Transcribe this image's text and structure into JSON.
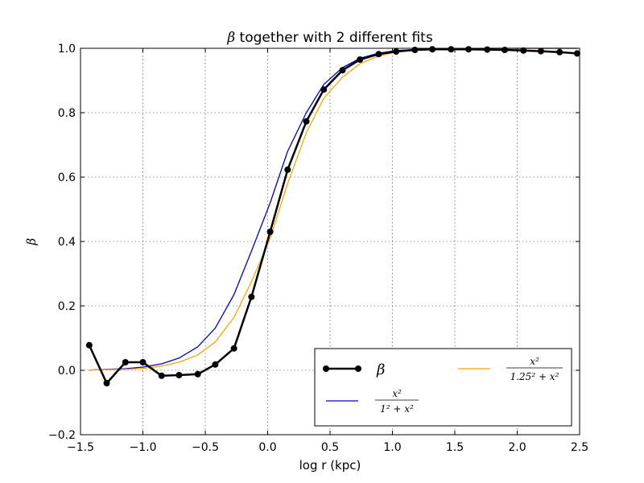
{
  "chart_data": {
    "type": "line",
    "title_symbol": "β",
    "title_rest": " together with 2 different fits",
    "xlabel": "log r (kpc)",
    "ylabel": "β",
    "xlim": [
      -1.5,
      2.5
    ],
    "ylim": [
      -0.2,
      1.0
    ],
    "x_ticks": [
      -1.5,
      -1.0,
      -0.5,
      0.0,
      0.5,
      1.0,
      1.5,
      2.0,
      2.5
    ],
    "x_tick_labels": [
      "−1.5",
      "−1.0",
      "−0.5",
      "0.0",
      "0.5",
      "1.0",
      "1.5",
      "2.0",
      "2.5"
    ],
    "y_ticks": [
      -0.2,
      0.0,
      0.2,
      0.4,
      0.6,
      0.8,
      1.0
    ],
    "y_tick_labels": [
      "−0.2",
      "0.0",
      "0.2",
      "0.4",
      "0.6",
      "0.8",
      "1.0"
    ],
    "grid": true,
    "legend_position": "lower-right",
    "series": [
      {
        "name": "β",
        "legend_label": "β",
        "color": "#000000",
        "marker": "circle",
        "x": [
          -1.43,
          -1.29,
          -1.14,
          -1.0,
          -0.85,
          -0.71,
          -0.56,
          -0.42,
          -0.27,
          -0.13,
          0.02,
          0.16,
          0.31,
          0.45,
          0.6,
          0.74,
          0.89,
          1.03,
          1.18,
          1.32,
          1.47,
          1.61,
          1.76,
          1.9,
          2.05,
          2.19,
          2.34,
          2.48
        ],
        "y": [
          0.078,
          -0.04,
          0.025,
          0.025,
          -0.017,
          -0.015,
          -0.012,
          0.018,
          0.068,
          0.228,
          0.43,
          0.623,
          0.773,
          0.872,
          0.932,
          0.965,
          0.982,
          0.99,
          0.995,
          0.997,
          0.997,
          0.997,
          0.996,
          0.995,
          0.993,
          0.991,
          0.988,
          0.984
        ]
      },
      {
        "name": "fit-1",
        "legend_label": "x²/(1² + x²)",
        "legend_num": "x²",
        "legend_den": "1² + x²",
        "color": "#0000cc",
        "marker": "none",
        "x": [
          -1.43,
          -1.29,
          -1.14,
          -1.0,
          -0.85,
          -0.71,
          -0.56,
          -0.42,
          -0.27,
          -0.13,
          0.02,
          0.16,
          0.31,
          0.45,
          0.6,
          0.74,
          0.89,
          1.03,
          1.18,
          1.32,
          1.47,
          1.61,
          1.76,
          1.9,
          2.05,
          2.19,
          2.34,
          2.48
        ],
        "y": [
          0.001,
          0.003,
          0.005,
          0.01,
          0.02,
          0.038,
          0.073,
          0.131,
          0.235,
          0.37,
          0.52,
          0.68,
          0.8,
          0.888,
          0.94,
          0.969,
          0.985,
          0.993,
          0.996,
          0.998,
          0.999,
          0.999,
          1.0,
          1.0,
          1.0,
          1.0,
          1.0,
          1.0
        ]
      },
      {
        "name": "fit-2",
        "legend_label": "x²/(1.25² + x²)",
        "legend_num": "x²",
        "legend_den": "1.25² + x²",
        "color": "#ffa500",
        "marker": "none",
        "x": [
          -1.43,
          -1.29,
          -1.14,
          -1.0,
          -0.85,
          -0.71,
          -0.56,
          -0.42,
          -0.27,
          -0.13,
          0.02,
          0.16,
          0.31,
          0.45,
          0.6,
          0.74,
          0.89,
          1.03,
          1.18,
          1.32,
          1.47,
          1.61,
          1.76,
          1.9,
          2.05,
          2.19,
          2.34,
          2.48
        ],
        "y": [
          0.001,
          0.002,
          0.003,
          0.006,
          0.013,
          0.025,
          0.048,
          0.088,
          0.164,
          0.275,
          0.41,
          0.58,
          0.738,
          0.845,
          0.91,
          0.952,
          0.976,
          0.988,
          0.994,
          0.997,
          0.998,
          0.999,
          0.999,
          1.0,
          1.0,
          1.0,
          1.0,
          1.0
        ]
      }
    ]
  }
}
